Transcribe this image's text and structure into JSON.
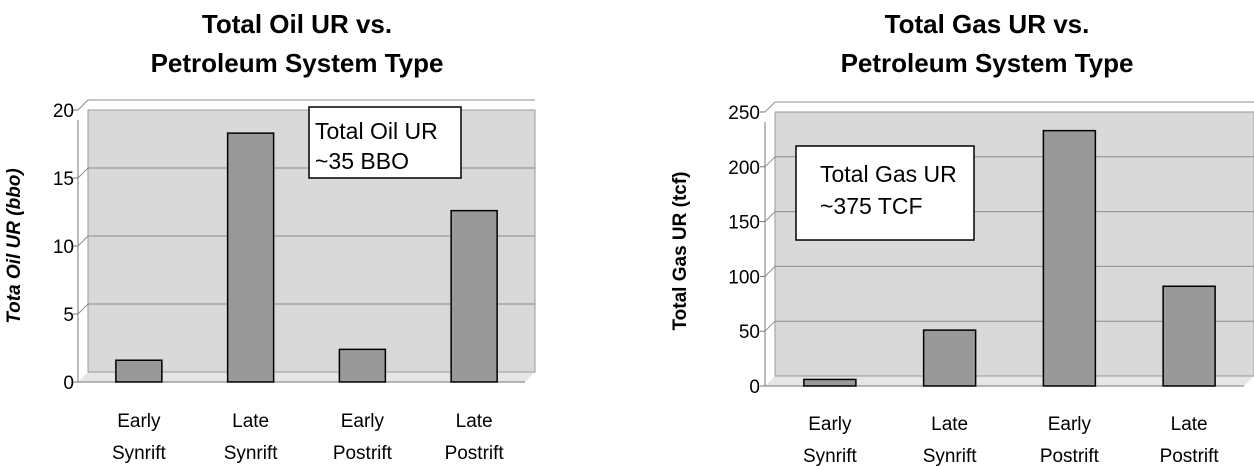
{
  "chart_data": [
    {
      "type": "bar",
      "title_lines": [
        "Total Oil UR vs.",
        "Petroleum System Type"
      ],
      "ylabel": "Tota Oil UR (bbo)",
      "ylim": [
        0,
        20
      ],
      "yticks": [
        "0",
        "5",
        "10",
        "15",
        "20"
      ],
      "categories": [
        [
          "Early",
          "Synrift"
        ],
        [
          "Late",
          "Synrift"
        ],
        [
          "Early",
          "Postrift"
        ],
        [
          "Late",
          "Postrift"
        ]
      ],
      "values": [
        1.6,
        18.3,
        2.4,
        12.6
      ],
      "annotation": [
        "Total Oil UR",
        "~35 BBO"
      ],
      "grid": true,
      "plot_bg": "#d9d9d9",
      "bar_color": "#999999"
    },
    {
      "type": "bar",
      "title_lines": [
        "Total Gas UR vs.",
        "Petroleum System Type"
      ],
      "ylabel": "Total Gas UR (tcf)",
      "ylim": [
        0,
        250
      ],
      "yticks": [
        "0",
        "50",
        "100",
        "150",
        "200",
        "250"
      ],
      "categories": [
        [
          "Early",
          "Synrift"
        ],
        [
          "Late",
          "Synrift"
        ],
        [
          "Early",
          "Postrift"
        ],
        [
          "Late",
          "Postrift"
        ]
      ],
      "values": [
        6,
        51,
        233,
        91
      ],
      "annotation": [
        "Total Gas UR",
        "~375 TCF"
      ],
      "grid": true,
      "plot_bg": "#d9d9d9",
      "bar_color": "#999999"
    }
  ]
}
